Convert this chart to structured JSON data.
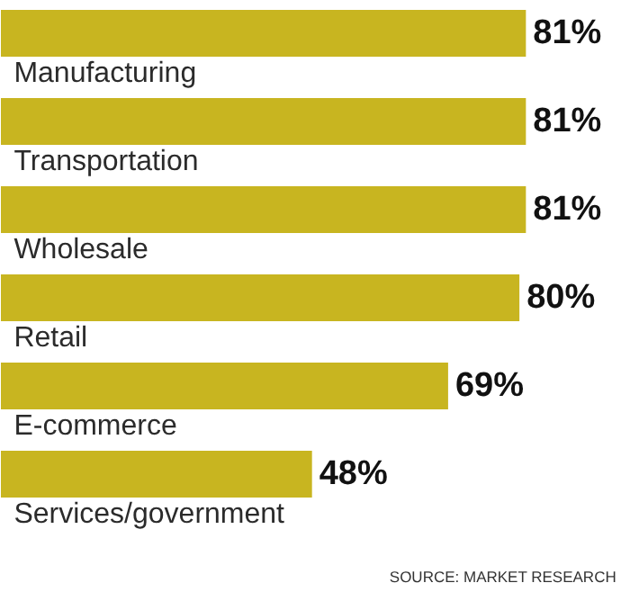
{
  "chart_data": {
    "type": "bar",
    "orientation": "horizontal",
    "categories": [
      "Manufacturing",
      "Transportation",
      "Wholesale",
      "Retail",
      "E-commerce",
      "Services/government"
    ],
    "values": [
      81,
      81,
      81,
      80,
      69,
      48
    ],
    "value_labels": [
      "81%",
      "81%",
      "81%",
      "80%",
      "69%",
      "48%"
    ],
    "color": "#c8b520",
    "annotations": [
      "SOURCE: MARKET RESEARCH"
    ]
  }
}
